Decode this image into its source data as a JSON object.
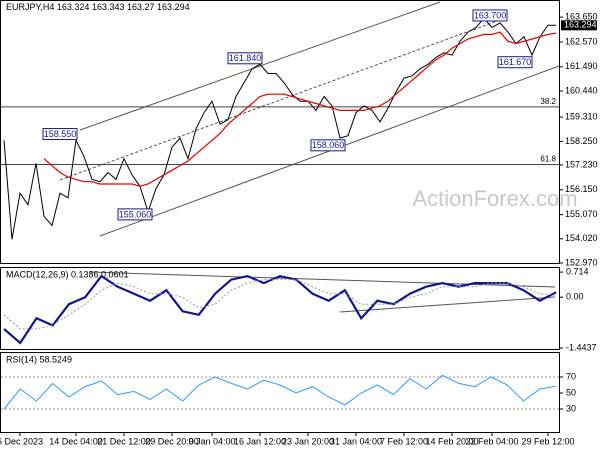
{
  "chart_data": [
    {
      "type": "price",
      "symbol": "EURJPY,H4",
      "open": 163.324,
      "high": 163.343,
      "low": 163.27,
      "close": 163.294,
      "watermark": "ActionForex.com",
      "series": [
        {
          "name": "Close",
          "color": "#000000",
          "values": [
            158.3,
            154.0,
            156.0,
            155.5,
            157.3,
            155.0,
            154.6,
            156.0,
            155.8,
            158.3,
            157.6,
            156.6,
            156.5,
            156.9,
            156.6,
            157.5,
            156.8,
            156.3,
            155.2,
            156.2,
            156.8,
            158.0,
            158.4,
            157.5,
            158.8,
            159.5,
            160.0,
            159.0,
            159.2,
            160.2,
            160.8,
            161.4,
            161.6,
            161.2,
            161.2,
            160.8,
            160.3,
            160.0,
            160.0,
            159.6,
            160.2,
            159.8,
            158.4,
            158.5,
            159.5,
            159.8,
            159.6,
            159.1,
            159.7,
            160.4,
            161.0,
            161.1,
            161.4,
            161.6,
            161.9,
            162.1,
            162.0,
            162.6,
            163.0,
            163.2,
            163.6,
            163.2,
            163.4,
            163.0,
            162.5,
            162.8,
            162.0,
            162.8,
            163.3,
            163.294
          ]
        },
        {
          "name": "MA",
          "color": "#e00000",
          "values": [
            null,
            null,
            null,
            null,
            null,
            157.5,
            157.2,
            156.9,
            156.7,
            156.6,
            156.5,
            156.5,
            156.4,
            156.4,
            156.4,
            156.4,
            156.4,
            156.3,
            156.4,
            156.6,
            156.8,
            157.0,
            157.2,
            157.4,
            157.7,
            158.0,
            158.3,
            158.6,
            159.0,
            159.3,
            159.6,
            159.9,
            160.2,
            160.3,
            160.3,
            160.3,
            160.2,
            160.1,
            160.0,
            159.9,
            159.8,
            159.7,
            159.6,
            159.6,
            159.6,
            159.6,
            159.7,
            159.8,
            160.0,
            160.3,
            160.6,
            160.9,
            161.2,
            161.5,
            161.8,
            162.0,
            162.3,
            162.5,
            162.7,
            162.8,
            162.9,
            162.9,
            163.0,
            162.6,
            162.5,
            162.6,
            162.7,
            162.8,
            162.9,
            162.95
          ]
        }
      ],
      "xlim": [
        0,
        69
      ],
      "xticks": [
        {
          "value": 2,
          "label": "6 Dec 2023"
        },
        {
          "value": 9,
          "label": "14 Dec 04:00"
        },
        {
          "value": 15,
          "label": "21 Dec 12:00"
        },
        {
          "value": 21,
          "label": "29 Dec 20:00"
        },
        {
          "value": 26,
          "label": "9 Jan 04:00"
        },
        {
          "value": 32,
          "label": "16 Jan 12:00"
        },
        {
          "value": 38,
          "label": "23 Jan 20:00"
        },
        {
          "value": 44,
          "label": "31 Jan 04:00"
        },
        {
          "value": 50,
          "label": "7 Feb 12:00"
        },
        {
          "value": 56,
          "label": "14 Feb 20:00"
        },
        {
          "value": 61,
          "label": "22 Feb 04:00"
        },
        {
          "value": 68,
          "label": "29 Feb 12:00"
        }
      ],
      "ylim": [
        152.97,
        164.22
      ],
      "yticks": [
        {
          "value": 163.65,
          "label": "163.650"
        },
        {
          "value": 162.57,
          "label": "162.570"
        },
        {
          "value": 161.49,
          "label": "161.490"
        },
        {
          "value": 160.44,
          "label": "160.440"
        },
        {
          "value": 159.31,
          "label": "159.310"
        },
        {
          "value": 158.25,
          "label": "158.250"
        },
        {
          "value": 157.23,
          "label": "157.230"
        },
        {
          "value": 156.15,
          "label": "156.150"
        },
        {
          "value": 155.07,
          "label": "155.070"
        },
        {
          "value": 154.02,
          "label": "154.020"
        },
        {
          "value": 152.97,
          "label": "152.970"
        }
      ],
      "levels": [
        {
          "label": "38.2",
          "value": 159.75
        },
        {
          "label": "61.8",
          "value": 157.25
        }
      ],
      "annotations": [
        {
          "value": 163.7,
          "label": "163.700"
        },
        {
          "value": 161.84,
          "label": "161.840"
        },
        {
          "value": 158.55,
          "label": "158.550"
        },
        {
          "value": 158.06,
          "label": "158.060"
        },
        {
          "value": 155.06,
          "label": "155.060"
        },
        {
          "value": 161.67,
          "label": "161.670"
        }
      ]
    },
    {
      "type": "macd",
      "title": "MACD(12,26,9) 0.1386 0.0601",
      "series": [
        {
          "name": "MACD",
          "color": "#14148c",
          "values": [
            -0.9,
            -1.3,
            -0.6,
            -0.8,
            -0.2,
            0.0,
            0.6,
            0.3,
            0.1,
            -0.1,
            0.2,
            -0.4,
            -0.5,
            0.1,
            0.5,
            0.6,
            0.4,
            0.6,
            0.5,
            0.1,
            -0.1,
            0.2,
            -0.6,
            -0.1,
            -0.2,
            0.1,
            0.3,
            0.4,
            0.3,
            0.4,
            0.4,
            0.4,
            0.2,
            -0.1,
            0.14
          ]
        },
        {
          "name": "Signal",
          "color": "#9a9a9a",
          "values": [
            -0.5,
            -0.9,
            -0.9,
            -0.8,
            -0.5,
            -0.2,
            0.2,
            0.4,
            0.3,
            0.1,
            0.1,
            0.0,
            -0.3,
            -0.2,
            0.2,
            0.4,
            0.5,
            0.5,
            0.5,
            0.3,
            0.1,
            0.1,
            -0.2,
            -0.2,
            -0.2,
            0.0,
            0.1,
            0.3,
            0.3,
            0.3,
            0.4,
            0.4,
            0.3,
            0.1,
            0.06
          ]
        }
      ],
      "ylim": [
        -1.5,
        0.83
      ],
      "yticks": [
        0.714,
        {
          "value": 0,
          "label": "0.00"
        },
        -1.4437
      ]
    },
    {
      "type": "rsi",
      "title": "RSI(14) 58.5249",
      "series": [
        {
          "name": "RSI",
          "color": "#3399ff",
          "values": [
            30,
            55,
            40,
            62,
            45,
            58,
            65,
            48,
            52,
            42,
            55,
            40,
            60,
            70,
            62,
            55,
            66,
            60,
            50,
            58,
            45,
            35,
            50,
            60,
            48,
            68,
            55,
            72,
            62,
            58,
            70,
            60,
            40,
            55,
            58.52
          ]
        }
      ],
      "ylim": [
        0,
        100
      ],
      "yticks": [
        70,
        50,
        30
      ],
      "levels": [
        70,
        30
      ]
    }
  ]
}
